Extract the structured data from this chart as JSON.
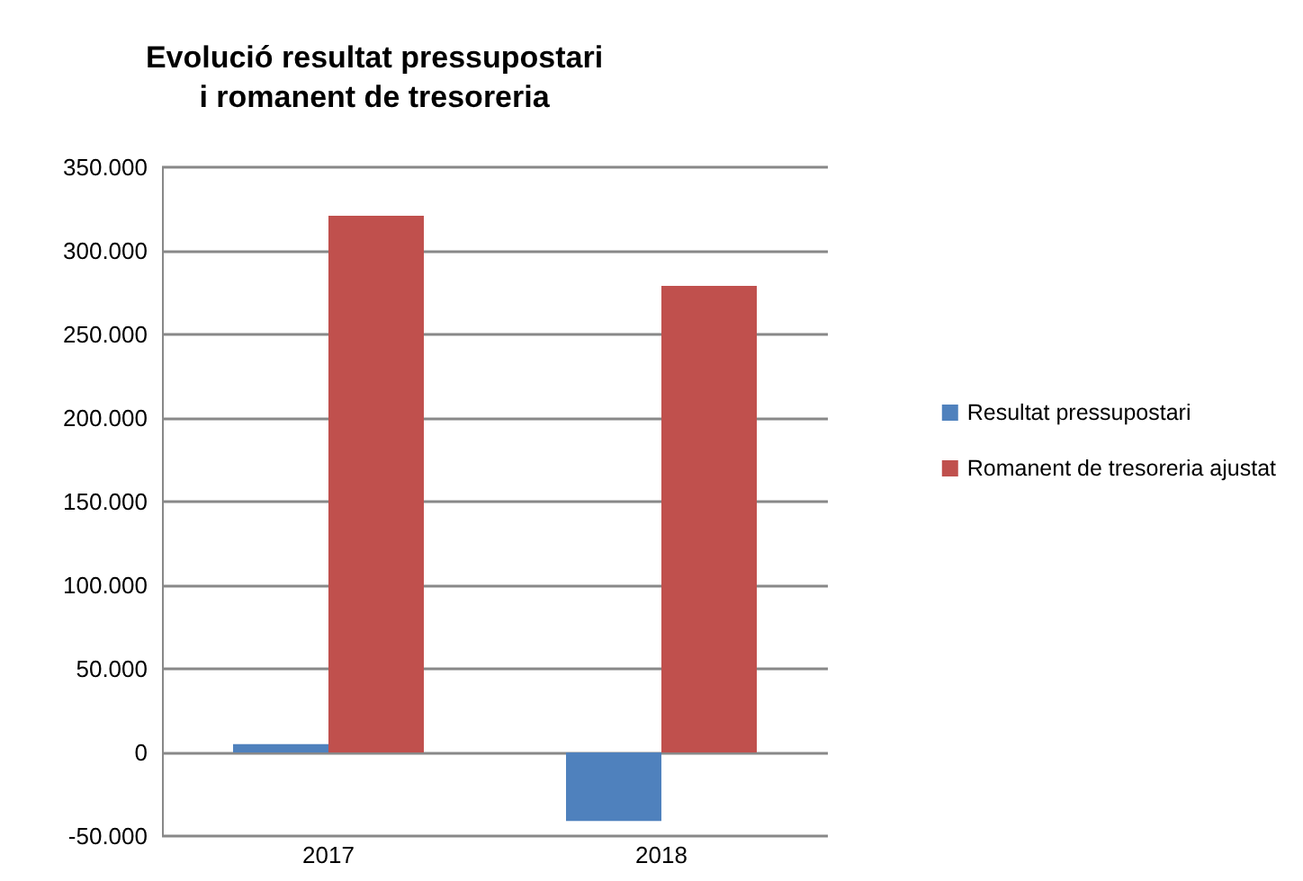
{
  "chart_data": {
    "type": "bar",
    "title": "Evolució resultat pressupostari\ni romanent de tresoreria",
    "categories": [
      "2017",
      "2018"
    ],
    "series": [
      {
        "name": "Resultat pressupostari",
        "color": "#4f81bd",
        "values": [
          5000,
          -41000
        ]
      },
      {
        "name": "Romanent de tresoreria ajustat",
        "color": "#c0504d",
        "values": [
          321000,
          279000
        ]
      }
    ],
    "ylim": [
      -50000,
      350000
    ],
    "yticks": [
      {
        "value": -50000,
        "label": "-50.000"
      },
      {
        "value": 0,
        "label": "0"
      },
      {
        "value": 50000,
        "label": "50.000"
      },
      {
        "value": 100000,
        "label": "100.000"
      },
      {
        "value": 150000,
        "label": "150.000"
      },
      {
        "value": 200000,
        "label": "200.000"
      },
      {
        "value": 250000,
        "label": "250.000"
      },
      {
        "value": 300000,
        "label": "300.000"
      },
      {
        "value": 350000,
        "label": "350.000"
      }
    ],
    "grid": "y",
    "legend": "right"
  }
}
